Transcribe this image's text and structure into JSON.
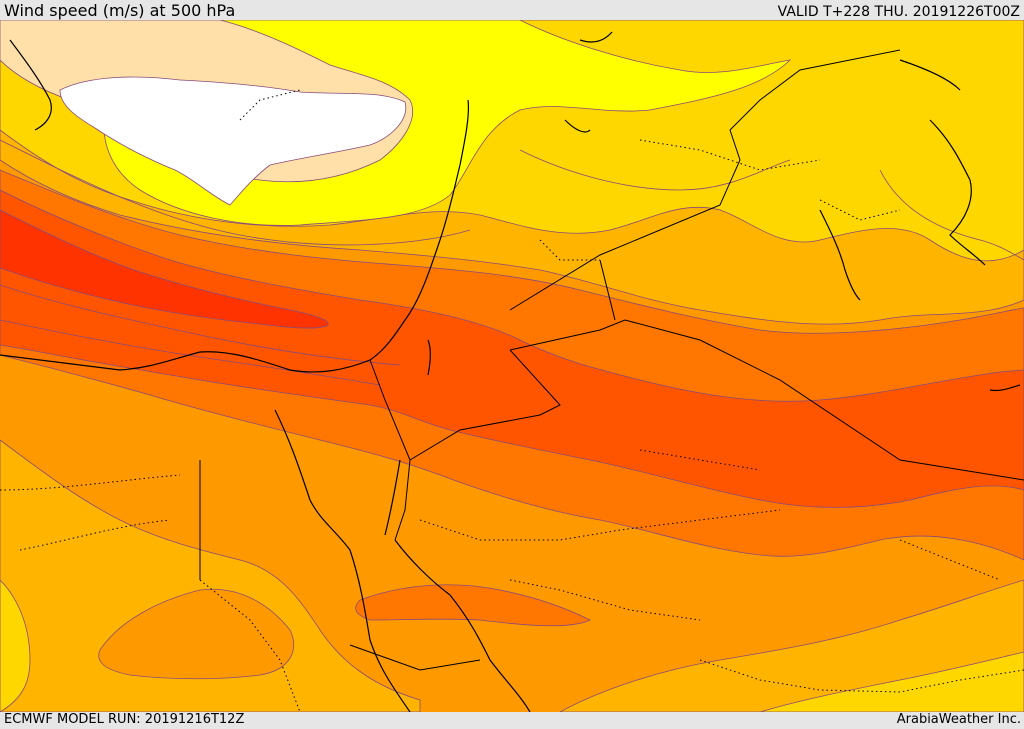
{
  "header": {
    "title": "Wind speed (m/s) at 500 hPa",
    "valid": "VALID T+228 THU. 20191226T00Z"
  },
  "footer": {
    "model_run": "ECMWF MODEL RUN: 20191216T12Z",
    "credit": "ArabiaWeather Inc."
  },
  "map": {
    "field": "wind-speed-500hPa",
    "palette": {
      "calm": "#ffffff",
      "very-light": "#ffe0a8",
      "light": "#ffff00",
      "light-moderate": "#ffd700",
      "moderate": "#ffb400",
      "moderate-strong": "#ff9900",
      "strong": "#ff7700",
      "very-strong": "#ff5500",
      "jet-core": "#ff3300",
      "contour": "#8a4a7a",
      "coastline": "#000000",
      "border": "#000000"
    },
    "icons": [
      "coastline-icon",
      "country-border-icon",
      "contour-line-icon"
    ]
  }
}
